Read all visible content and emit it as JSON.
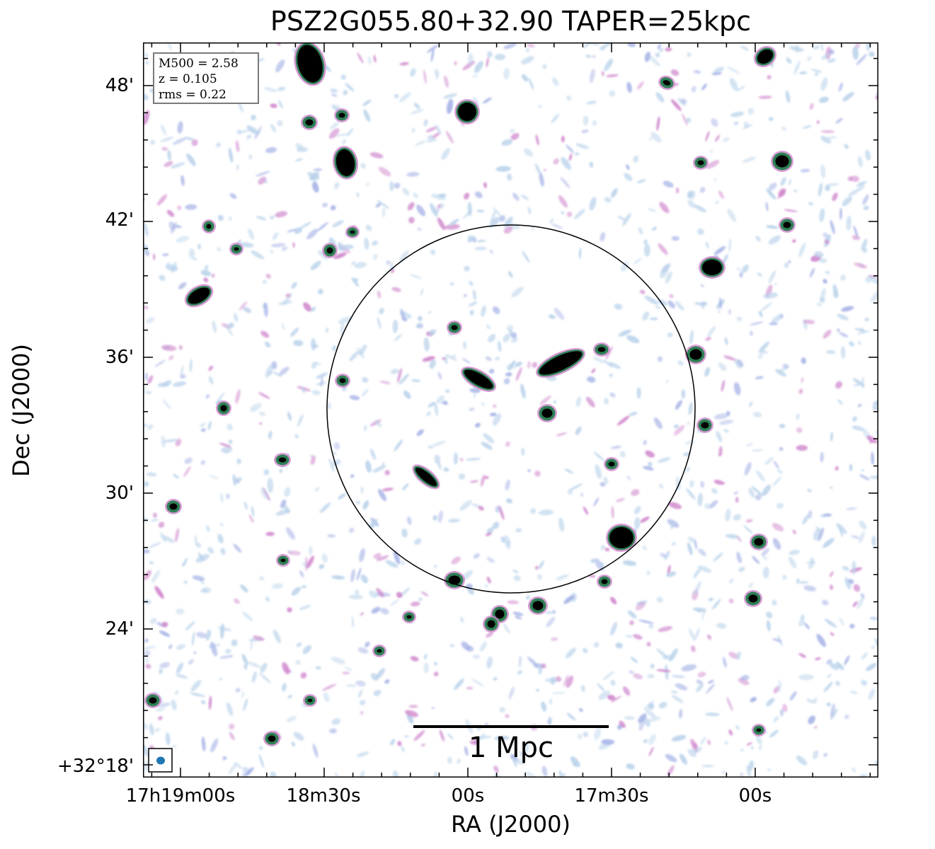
{
  "title": "PSZ2G055.80+32.90 TAPER=25kpc",
  "axes": {
    "xlabel": "RA (J2000)",
    "ylabel": "Dec (J2000)",
    "x_ticks": [
      "17h19m00s",
      "18m30s",
      "00s",
      "17m30s",
      "00s"
    ],
    "y_ticks": [
      "48'",
      "42'",
      "36'",
      "30'",
      "24'",
      "+32°18'"
    ]
  },
  "infobox": {
    "line1": "M500 = 2.58",
    "line2": "z = 0.105",
    "line3": "rms = 0.22"
  },
  "scalebar": {
    "label": "1 Mpc"
  },
  "colors": {
    "noise_light": "#b9d2ea",
    "noise_mid": "#a5b2e6",
    "noise_pink": "#cf86cc",
    "source_mid": "#2f7f55",
    "source_core": "#000000",
    "beam": "#1f77b4"
  }
}
